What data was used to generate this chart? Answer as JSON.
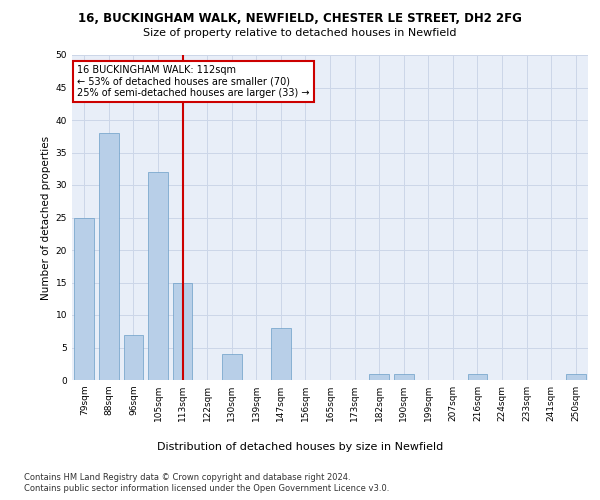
{
  "title": "16, BUCKINGHAM WALK, NEWFIELD, CHESTER LE STREET, DH2 2FG",
  "subtitle": "Size of property relative to detached houses in Newfield",
  "xlabel": "Distribution of detached houses by size in Newfield",
  "ylabel": "Number of detached properties",
  "categories": [
    "79sqm",
    "88sqm",
    "96sqm",
    "105sqm",
    "113sqm",
    "122sqm",
    "130sqm",
    "139sqm",
    "147sqm",
    "156sqm",
    "165sqm",
    "173sqm",
    "182sqm",
    "190sqm",
    "199sqm",
    "207sqm",
    "216sqm",
    "224sqm",
    "233sqm",
    "241sqm",
    "250sqm"
  ],
  "values": [
    25,
    38,
    7,
    32,
    15,
    0,
    4,
    0,
    8,
    0,
    0,
    0,
    1,
    1,
    0,
    0,
    1,
    0,
    0,
    0,
    1
  ],
  "bar_color": "#b8cfe8",
  "bar_edge_color": "#6b9ec8",
  "vline_index": 4,
  "vline_color": "#cc0000",
  "annotation_text": "16 BUCKINGHAM WALK: 112sqm\n← 53% of detached houses are smaller (70)\n25% of semi-detached houses are larger (33) →",
  "annotation_box_edgecolor": "#cc0000",
  "ylim": [
    0,
    50
  ],
  "yticks": [
    0,
    5,
    10,
    15,
    20,
    25,
    30,
    35,
    40,
    45,
    50
  ],
  "grid_color": "#ccd6e8",
  "background_color": "#e8eef8",
  "title_fontsize": 8.5,
  "subtitle_fontsize": 8,
  "ylabel_fontsize": 7.5,
  "xlabel_fontsize": 8,
  "tick_fontsize": 6.5,
  "annot_fontsize": 7,
  "footer_fontsize": 6,
  "footer_line1": "Contains HM Land Registry data © Crown copyright and database right 2024.",
  "footer_line2": "Contains public sector information licensed under the Open Government Licence v3.0."
}
